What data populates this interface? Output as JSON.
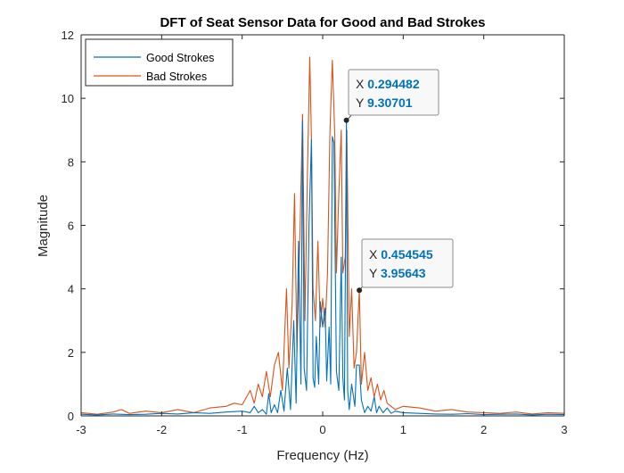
{
  "chart_data": {
    "type": "line",
    "title": "DFT of Seat Sensor Data for Good and Bad Strokes",
    "xlabel": "Frequency (Hz)",
    "ylabel": "Magnitude",
    "xlim": [
      -3,
      3
    ],
    "ylim": [
      0,
      12
    ],
    "xticks": [
      -3,
      -2,
      -1,
      0,
      1,
      2,
      3
    ],
    "yticks": [
      0,
      2,
      4,
      6,
      8,
      10,
      12
    ],
    "xtick_labels": [
      "-3",
      "-2",
      "-1",
      "0",
      "1",
      "2",
      "3"
    ],
    "ytick_labels": [
      "0",
      "2",
      "4",
      "6",
      "8",
      "10",
      "12"
    ],
    "grid": false,
    "legend_position": "top-left",
    "series": [
      {
        "name": "Good Strokes",
        "color": "#0072BD",
        "x": [
          -3.0,
          -2.8,
          -2.6,
          -2.4,
          -2.2,
          -2.0,
          -1.8,
          -1.6,
          -1.4,
          -1.2,
          -1.0,
          -0.9,
          -0.85,
          -0.8,
          -0.75,
          -0.7,
          -0.67,
          -0.64,
          -0.6,
          -0.56,
          -0.52,
          -0.48,
          -0.44,
          -0.4,
          -0.36,
          -0.33,
          -0.3,
          -0.27,
          -0.25,
          -0.23,
          -0.2,
          -0.17,
          -0.14,
          -0.12,
          -0.1,
          -0.08,
          -0.05,
          -0.03,
          0.0,
          0.03,
          0.05,
          0.08,
          0.1,
          0.12,
          0.14,
          0.17,
          0.2,
          0.23,
          0.25,
          0.27,
          0.294482,
          0.31,
          0.33,
          0.36,
          0.4,
          0.42,
          0.454545,
          0.48,
          0.52,
          0.56,
          0.6,
          0.64,
          0.67,
          0.7,
          0.75,
          0.8,
          0.85,
          0.9,
          1.0,
          1.2,
          1.4,
          1.6,
          1.8,
          2.0,
          2.2,
          2.4,
          2.6,
          2.8,
          3.0
        ],
        "values": [
          0.05,
          0.03,
          0.06,
          0.04,
          0.05,
          0.08,
          0.06,
          0.1,
          0.08,
          0.12,
          0.15,
          0.1,
          0.3,
          0.1,
          0.2,
          0.05,
          0.7,
          0.1,
          0.35,
          0.1,
          0.8,
          0.15,
          1.5,
          0.2,
          3.0,
          0.4,
          5.5,
          1.0,
          9.3,
          1.5,
          0.8,
          6.0,
          8.7,
          1.2,
          0.9,
          2.5,
          1.0,
          3.6,
          2.8,
          3.4,
          1.1,
          2.8,
          1.0,
          8.8,
          8.6,
          1.4,
          0.8,
          5.0,
          1.2,
          0.5,
          9.30701,
          0.8,
          0.2,
          1.0,
          0.3,
          1.6,
          1.6,
          0.5,
          0.1,
          0.3,
          0.15,
          0.6,
          0.1,
          0.3,
          0.1,
          0.25,
          0.08,
          0.15,
          0.1,
          0.08,
          0.06,
          0.05,
          0.07,
          0.04,
          0.05,
          0.06,
          0.03,
          0.05,
          0.04
        ]
      },
      {
        "name": "Bad Strokes",
        "color": "#D95319",
        "x": [
          -3.0,
          -2.8,
          -2.6,
          -2.5,
          -2.4,
          -2.2,
          -2.0,
          -1.8,
          -1.6,
          -1.4,
          -1.2,
          -1.1,
          -1.0,
          -0.9,
          -0.85,
          -0.8,
          -0.75,
          -0.7,
          -0.65,
          -0.6,
          -0.55,
          -0.5,
          -0.45,
          -0.42,
          -0.38,
          -0.35,
          -0.32,
          -0.28,
          -0.25,
          -0.22,
          -0.19,
          -0.16,
          -0.14,
          -0.12,
          -0.09,
          -0.06,
          -0.03,
          0.0,
          0.03,
          0.06,
          0.09,
          0.12,
          0.15,
          0.17,
          0.2,
          0.23,
          0.25,
          0.28,
          0.3,
          0.33,
          0.36,
          0.39,
          0.42,
          0.454545,
          0.48,
          0.52,
          0.56,
          0.6,
          0.64,
          0.68,
          0.72,
          0.76,
          0.8,
          0.85,
          0.9,
          1.0,
          1.2,
          1.4,
          1.6,
          1.8,
          2.0,
          2.2,
          2.4,
          2.6,
          2.8,
          3.0
        ],
        "values": [
          0.1,
          0.05,
          0.12,
          0.2,
          0.08,
          0.15,
          0.1,
          0.2,
          0.1,
          0.25,
          0.3,
          0.4,
          0.35,
          0.8,
          0.4,
          1.0,
          0.6,
          1.4,
          0.6,
          1.6,
          2.0,
          0.8,
          4.0,
          1.5,
          3.5,
          7.0,
          2.0,
          6.0,
          9.5,
          3.0,
          7.5,
          11.3,
          8.7,
          4.0,
          3.0,
          5.5,
          2.8,
          3.7,
          2.8,
          4.5,
          8.9,
          11.2,
          8.8,
          4.5,
          7.0,
          9.0,
          4.5,
          5.0,
          9.0,
          2.5,
          4.0,
          1.5,
          2.0,
          3.95643,
          1.0,
          2.0,
          0.8,
          1.2,
          0.6,
          1.0,
          0.5,
          0.8,
          0.4,
          0.3,
          0.2,
          0.3,
          0.25,
          0.15,
          0.2,
          0.12,
          0.1,
          0.08,
          0.12,
          0.06,
          0.1,
          0.08
        ]
      }
    ],
    "datatips": [
      {
        "x_prefix": "X",
        "y_prefix": "Y",
        "x": 0.294482,
        "y": 9.30701,
        "x_label": "0.294482",
        "y_label": "9.30701"
      },
      {
        "x_prefix": "X",
        "y_prefix": "Y",
        "x": 0.454545,
        "y": 3.95643,
        "x_label": "0.454545",
        "y_label": "3.95643"
      }
    ]
  }
}
